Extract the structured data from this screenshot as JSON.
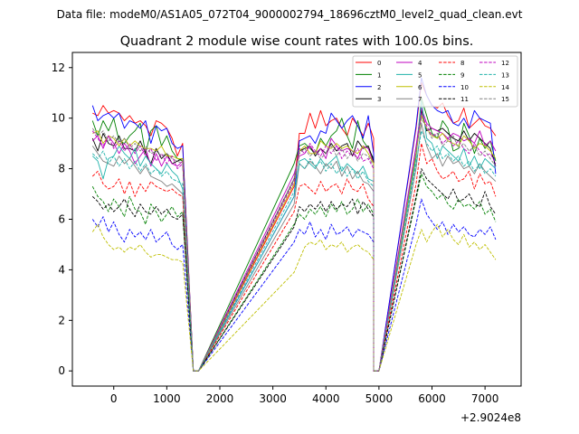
{
  "figure": {
    "suptitle": "Data file: modeM0/AS1A05_072T04_9000002794_18696cztM0_level2_quad_clean.evt",
    "offset_label": "+2.9024e8"
  },
  "chart_data": {
    "type": "line",
    "title": "Quadrant 2 module wise count rates with 100.0s bins.",
    "xlabel": "",
    "ylabel": "",
    "xlim": [
      -780,
      7680
    ],
    "ylim": [
      -0.6,
      12.6
    ],
    "xticks": [
      0,
      1000,
      2000,
      3000,
      4000,
      5000,
      6000,
      7000
    ],
    "yticks": [
      0,
      2,
      4,
      6,
      8,
      10,
      12
    ],
    "x_offset": 290240000,
    "legend_position": "top-right",
    "segments": [
      {
        "start": -400,
        "count": 18
      },
      {
        "start": 1500,
        "count": 2
      },
      {
        "start": 3400,
        "count": 16
      },
      {
        "start": 4900,
        "count": 2
      },
      {
        "start": 5700,
        "count": 16
      }
    ],
    "series": [
      {
        "name": "0",
        "color": "#ff0000",
        "dash": "solid",
        "seg1": [
          10.2,
          10.1,
          10.5,
          10.2,
          10.3,
          10.2,
          9.9,
          10.1,
          9.8,
          9.9,
          9.7,
          9.3,
          9.9,
          9.8,
          9.6,
          9.2,
          8.5,
          9.0
        ],
        "seg2": [
          7.3,
          9.4,
          9.4,
          10.2,
          9.6,
          10.3,
          9.7,
          9.9,
          10.0,
          9.6,
          9.3,
          10.0,
          9.7,
          9.3,
          9.8,
          9.2
        ],
        "seg3": [
          9.6,
          11.4,
          10.9,
          10.5,
          10.4,
          10.6,
          10.1,
          9.8,
          9.9,
          10.4,
          9.6,
          9.8,
          10.0,
          9.7,
          9.6,
          9.3
        ]
      },
      {
        "name": "1",
        "color": "#008000",
        "dash": "solid",
        "seg1": [
          9.9,
          9.3,
          9.9,
          9.5,
          10.0,
          9.1,
          9.0,
          9.3,
          9.5,
          9.8,
          8.6,
          9.5,
          9.7,
          8.9,
          9.3,
          8.7,
          8.4,
          8.3
        ],
        "seg2": [
          8.2,
          8.9,
          9.0,
          8.8,
          8.6,
          9.2,
          8.9,
          9.3,
          9.5,
          10.0,
          9.3,
          8.8,
          9.9,
          9.1,
          8.8,
          8.4
        ],
        "seg3": [
          8.5,
          10.8,
          10.1,
          9.4,
          9.2,
          9.9,
          9.6,
          8.7,
          8.8,
          9.8,
          9.3,
          8.6,
          9.2,
          8.8,
          9.1,
          8.3
        ]
      },
      {
        "name": "2",
        "color": "#0000ff",
        "dash": "solid",
        "seg1": [
          10.5,
          9.9,
          10.1,
          10.2,
          10.0,
          10.2,
          9.6,
          9.9,
          9.8,
          9.6,
          9.9,
          9.0,
          9.7,
          9.5,
          9.6,
          9.0,
          8.8,
          8.9
        ],
        "seg2": [
          6.9,
          9.1,
          9.2,
          9.3,
          9.0,
          9.5,
          9.4,
          10.2,
          9.9,
          9.6,
          9.9,
          10.1,
          9.7,
          9.2,
          10.1,
          8.6
        ],
        "seg3": [
          9.7,
          11.6,
          10.9,
          10.5,
          10.3,
          10.2,
          10.3,
          9.8,
          9.7,
          10.0,
          9.6,
          10.3,
          10.0,
          9.9,
          9.8,
          7.8
        ]
      },
      {
        "name": "3",
        "color": "#000000",
        "dash": "solid",
        "seg1": [
          9.2,
          8.7,
          9.4,
          9.0,
          8.9,
          9.3,
          8.8,
          8.8,
          8.7,
          9.1,
          8.6,
          8.2,
          8.8,
          8.4,
          8.6,
          8.2,
          8.3,
          8.4
        ],
        "seg2": [
          7.6,
          8.7,
          8.8,
          8.9,
          8.5,
          8.8,
          8.6,
          9.0,
          8.7,
          8.9,
          9.0,
          8.5,
          9.1,
          8.8,
          8.9,
          8.3
        ],
        "seg3": [
          8.6,
          10.3,
          9.5,
          9.6,
          9.5,
          9.6,
          9.4,
          9.2,
          9.1,
          9.5,
          9.1,
          9.4,
          9.2,
          9.0,
          8.8,
          8.1
        ]
      },
      {
        "name": "4",
        "color": "#bf00bf",
        "dash": "solid",
        "seg1": [
          9.1,
          9.3,
          8.8,
          9.3,
          9.0,
          8.6,
          9.0,
          8.7,
          8.2,
          8.5,
          8.8,
          8.1,
          8.6,
          8.1,
          8.5,
          8.2,
          8.1,
          8.3
        ],
        "seg2": [
          7.8,
          8.5,
          8.6,
          8.9,
          8.6,
          8.8,
          8.4,
          9.2,
          8.9,
          8.7,
          8.8,
          8.7,
          8.4,
          8.9,
          8.8,
          8.2
        ],
        "seg3": [
          8.9,
          10.4,
          9.8,
          9.6,
          9.5,
          9.4,
          9.2,
          9.4,
          9.3,
          9.1,
          9.2,
          9.0,
          9.5,
          8.9,
          9.1,
          8.7
        ]
      },
      {
        "name": "5",
        "color": "#20b2aa",
        "dash": "solid",
        "seg1": [
          8.5,
          8.3,
          7.6,
          8.4,
          8.5,
          8.9,
          8.6,
          8.4,
          8.8,
          8.1,
          8.5,
          8.2,
          8.0,
          7.8,
          8.2,
          7.9,
          7.7,
          7.2
        ],
        "seg2": [
          6.9,
          8.3,
          8.4,
          8.2,
          8.0,
          8.4,
          8.1,
          8.3,
          8.5,
          7.9,
          8.2,
          8.0,
          7.8,
          8.1,
          7.6,
          7.5
        ],
        "seg3": [
          8.4,
          10.7,
          9.2,
          9.0,
          8.4,
          8.9,
          8.7,
          8.5,
          8.3,
          8.8,
          8.1,
          8.5,
          8.0,
          8.4,
          8.2,
          8.0
        ]
      },
      {
        "name": "6",
        "color": "#bfbf00",
        "dash": "solid",
        "seg1": [
          9.4,
          9.5,
          9.0,
          9.3,
          9.2,
          8.9,
          9.2,
          8.9,
          9.1,
          8.9,
          8.8,
          8.8,
          8.7,
          8.9,
          8.5,
          8.5,
          8.4,
          8.4
        ],
        "seg2": [
          7.4,
          8.7,
          8.9,
          8.6,
          8.6,
          9.1,
          8.9,
          8.8,
          9.0,
          8.8,
          8.9,
          8.7,
          8.6,
          8.9,
          8.6,
          8.2
        ],
        "seg3": [
          8.6,
          10.1,
          9.6,
          9.3,
          9.2,
          9.4,
          9.1,
          9.0,
          8.9,
          9.3,
          9.1,
          8.8,
          9.0,
          8.9,
          8.7,
          8.4
        ]
      },
      {
        "name": "7",
        "color": "#808080",
        "dash": "solid",
        "seg1": [
          8.9,
          8.6,
          8.3,
          8.2,
          8.1,
          8.5,
          8.2,
          8.4,
          8.1,
          7.8,
          8.1,
          7.7,
          7.6,
          7.5,
          7.3,
          7.4,
          7.2,
          7.0
        ],
        "seg2": [
          6.6,
          8.2,
          8.0,
          8.3,
          8.1,
          7.8,
          8.2,
          8.0,
          8.3,
          7.7,
          8.1,
          7.6,
          7.9,
          7.5,
          7.4,
          7.1
        ],
        "seg3": [
          8.0,
          9.8,
          8.9,
          8.4,
          8.6,
          8.1,
          8.5,
          8.2,
          8.3,
          8.0,
          8.1,
          7.8,
          8.2,
          7.9,
          7.7,
          7.5
        ]
      },
      {
        "name": "8",
        "color": "#ff0000",
        "dash": "dashed",
        "seg1": [
          7.7,
          7.9,
          7.4,
          7.2,
          7.3,
          7.6,
          7.0,
          7.5,
          6.9,
          7.4,
          7.1,
          7.5,
          7.3,
          7.2,
          7.1,
          7.2,
          7.0,
          6.9
        ],
        "seg2": [
          6.3,
          7.3,
          7.4,
          7.2,
          7.0,
          7.5,
          7.1,
          7.3,
          7.4,
          7.0,
          7.6,
          7.2,
          7.1,
          7.4,
          6.8,
          6.5
        ],
        "seg3": [
          7.4,
          9.0,
          8.2,
          8.4,
          7.9,
          7.6,
          7.7,
          7.9,
          7.5,
          7.6,
          7.9,
          7.2,
          7.8,
          7.4,
          7.5,
          6.9
        ]
      },
      {
        "name": "9",
        "color": "#008000",
        "dash": "dashed",
        "seg1": [
          7.3,
          6.9,
          6.7,
          6.3,
          6.8,
          6.5,
          6.1,
          6.9,
          6.4,
          6.3,
          5.8,
          6.6,
          6.3,
          5.9,
          6.2,
          6.5,
          6.1,
          6.3
        ],
        "seg2": [
          5.8,
          6.2,
          6.0,
          6.4,
          6.2,
          6.5,
          6.1,
          6.6,
          6.3,
          6.7,
          6.2,
          6.4,
          6.8,
          6.3,
          6.6,
          6.2
        ],
        "seg3": [
          6.8,
          7.8,
          7.3,
          7.1,
          6.8,
          7.0,
          6.6,
          6.4,
          6.8,
          6.5,
          6.6,
          6.4,
          6.7,
          6.2,
          6.4,
          5.9
        ]
      },
      {
        "name": "10",
        "color": "#0000ff",
        "dash": "dashed",
        "seg1": [
          6.0,
          5.7,
          6.1,
          5.5,
          5.9,
          5.4,
          5.1,
          5.6,
          5.3,
          5.5,
          5.2,
          5.6,
          5.1,
          5.3,
          5.5,
          5.0,
          4.8,
          5.0
        ],
        "seg2": [
          5.1,
          5.6,
          5.4,
          5.9,
          5.3,
          5.6,
          5.2,
          5.8,
          5.4,
          5.5,
          5.7,
          5.3,
          5.6,
          5.5,
          5.4,
          5.1
        ],
        "seg3": [
          5.8,
          6.8,
          6.2,
          5.9,
          5.6,
          5.9,
          5.4,
          5.8,
          5.5,
          5.7,
          5.4,
          5.3,
          5.6,
          5.4,
          5.7,
          5.2
        ]
      },
      {
        "name": "11",
        "color": "#000000",
        "dash": "dashed",
        "seg1": [
          6.9,
          6.7,
          6.4,
          6.6,
          6.3,
          6.5,
          6.8,
          6.4,
          6.1,
          6.6,
          6.3,
          6.2,
          6.5,
          6.2,
          6.4,
          6.1,
          6.0,
          6.2
        ],
        "seg2": [
          5.7,
          6.5,
          6.3,
          6.6,
          6.4,
          6.7,
          6.3,
          6.7,
          6.4,
          6.6,
          6.5,
          6.8,
          6.2,
          6.7,
          6.4,
          6.1
        ],
        "seg3": [
          6.9,
          8.0,
          7.6,
          7.4,
          7.2,
          7.0,
          6.8,
          7.2,
          6.7,
          6.8,
          7.0,
          6.6,
          6.5,
          7.1,
          6.5,
          6.2
        ]
      },
      {
        "name": "12",
        "color": "#bf00bf",
        "dash": "dashed",
        "seg1": [
          9.5,
          9.2,
          8.9,
          9.3,
          8.8,
          9.1,
          8.7,
          9.0,
          8.6,
          8.9,
          8.5,
          8.8,
          8.3,
          8.6,
          8.2,
          8.5,
          8.0,
          8.2
        ],
        "seg2": [
          7.5,
          8.8,
          8.6,
          9.0,
          8.7,
          8.5,
          8.9,
          8.6,
          8.9,
          8.4,
          8.7,
          8.5,
          8.8,
          8.3,
          8.4,
          8.0
        ],
        "seg3": [
          8.8,
          10.2,
          9.7,
          9.3,
          9.4,
          9.0,
          9.2,
          8.9,
          9.1,
          8.8,
          8.6,
          9.0,
          8.7,
          8.5,
          8.6,
          8.2
        ]
      },
      {
        "name": "13",
        "color": "#20b2aa",
        "dash": "dashed",
        "seg1": [
          8.6,
          8.4,
          8.7,
          8.2,
          8.5,
          8.1,
          8.4,
          8.0,
          8.3,
          7.9,
          8.2,
          7.8,
          8.0,
          7.7,
          7.9,
          7.6,
          7.5,
          7.4
        ],
        "seg2": [
          7.1,
          8.2,
          8.0,
          8.4,
          8.1,
          8.3,
          7.9,
          8.2,
          7.8,
          8.1,
          7.7,
          8.0,
          7.6,
          7.9,
          7.5,
          7.3
        ],
        "seg3": [
          8.2,
          9.5,
          9.0,
          8.7,
          8.9,
          8.4,
          8.6,
          8.3,
          8.5,
          8.1,
          8.3,
          7.9,
          8.2,
          7.8,
          8.0,
          7.7
        ]
      },
      {
        "name": "14",
        "color": "#bfbf00",
        "dash": "dashed",
        "seg1": [
          5.5,
          5.8,
          5.3,
          5.0,
          4.8,
          4.9,
          4.7,
          4.9,
          4.8,
          5.0,
          4.7,
          4.5,
          4.6,
          4.6,
          4.5,
          4.4,
          4.4,
          4.3
        ],
        "seg2": [
          3.9,
          4.4,
          4.9,
          5.1,
          5.0,
          5.2,
          4.8,
          5.0,
          4.9,
          5.1,
          4.7,
          4.9,
          5.0,
          4.8,
          4.7,
          4.4
        ],
        "seg3": [
          5.0,
          5.6,
          5.1,
          5.5,
          5.8,
          5.3,
          5.6,
          5.2,
          5.0,
          5.4,
          4.9,
          5.1,
          4.8,
          5.0,
          4.7,
          4.4
        ]
      },
      {
        "name": "15",
        "color": "#808080",
        "dash": "dashed",
        "seg1": [
          9.6,
          9.3,
          9.5,
          9.1,
          9.3,
          9.0,
          9.2,
          8.8,
          9.0,
          8.7,
          8.9,
          8.6,
          8.7,
          8.5,
          8.6,
          8.4,
          8.3,
          8.2
        ],
        "seg2": [
          7.6,
          8.6,
          8.8,
          8.5,
          8.7,
          8.4,
          8.6,
          8.9,
          8.5,
          8.8,
          8.4,
          8.7,
          8.3,
          8.6,
          8.5,
          8.1
        ],
        "seg3": [
          8.7,
          10.0,
          9.6,
          9.2,
          9.4,
          8.9,
          9.1,
          9.3,
          8.8,
          9.0,
          8.7,
          8.9,
          8.5,
          8.7,
          8.4,
          8.1
        ]
      }
    ]
  }
}
